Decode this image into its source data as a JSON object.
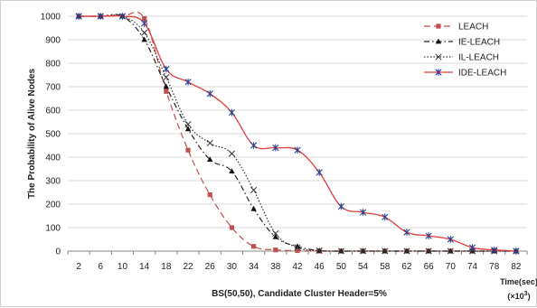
{
  "chart_data": {
    "type": "line",
    "title": "",
    "xlabel": "BS(50,50), Candidate Cluster Header=5%",
    "x_unit_label": "Time(sec)",
    "x_unit_multiplier": "(×10",
    "x_unit_exponent": "3",
    "x_unit_close": ")",
    "ylabel": "The Probability of Alive Nodes",
    "ylim": [
      0,
      1000
    ],
    "yticks": [
      0,
      100,
      200,
      300,
      400,
      500,
      600,
      700,
      800,
      900,
      1000
    ],
    "categories": [
      "2",
      "6",
      "10",
      "14",
      "18",
      "22",
      "26",
      "30",
      "34",
      "38",
      "42",
      "46",
      "50",
      "54",
      "58",
      "62",
      "66",
      "70",
      "74",
      "78",
      "82"
    ],
    "grid": "horizontal",
    "legend_position": "top-right",
    "series": [
      {
        "name": "LEACH",
        "color": "#c0504d",
        "dash": "7,4",
        "marker": "square",
        "values": [
          1000,
          1000,
          1000,
          990,
          680,
          430,
          240,
          100,
          20,
          5,
          2,
          0,
          0,
          0,
          0,
          0,
          0,
          0,
          0,
          0,
          0
        ]
      },
      {
        "name": "IE-LEACH",
        "color": "#222222",
        "dash": "6,3,1.5,3",
        "marker": "triangle",
        "values": [
          1000,
          1000,
          1000,
          900,
          700,
          520,
          390,
          340,
          180,
          60,
          20,
          2,
          0,
          0,
          0,
          0,
          0,
          0,
          0,
          0,
          0
        ]
      },
      {
        "name": "IL-LEACH",
        "color": "#333333",
        "dash": "1.5,2",
        "marker": "x",
        "values": [
          1000,
          1000,
          1000,
          930,
          740,
          540,
          460,
          415,
          260,
          75,
          15,
          2,
          0,
          0,
          0,
          0,
          0,
          0,
          0,
          0,
          0
        ]
      },
      {
        "name": "IDE-LEACH",
        "color": "#e23b3b",
        "dash": "",
        "marker": "asterisk",
        "values": [
          1000,
          1000,
          1000,
          970,
          775,
          720,
          670,
          590,
          450,
          440,
          430,
          335,
          190,
          165,
          145,
          80,
          65,
          50,
          15,
          5,
          0
        ]
      }
    ]
  }
}
